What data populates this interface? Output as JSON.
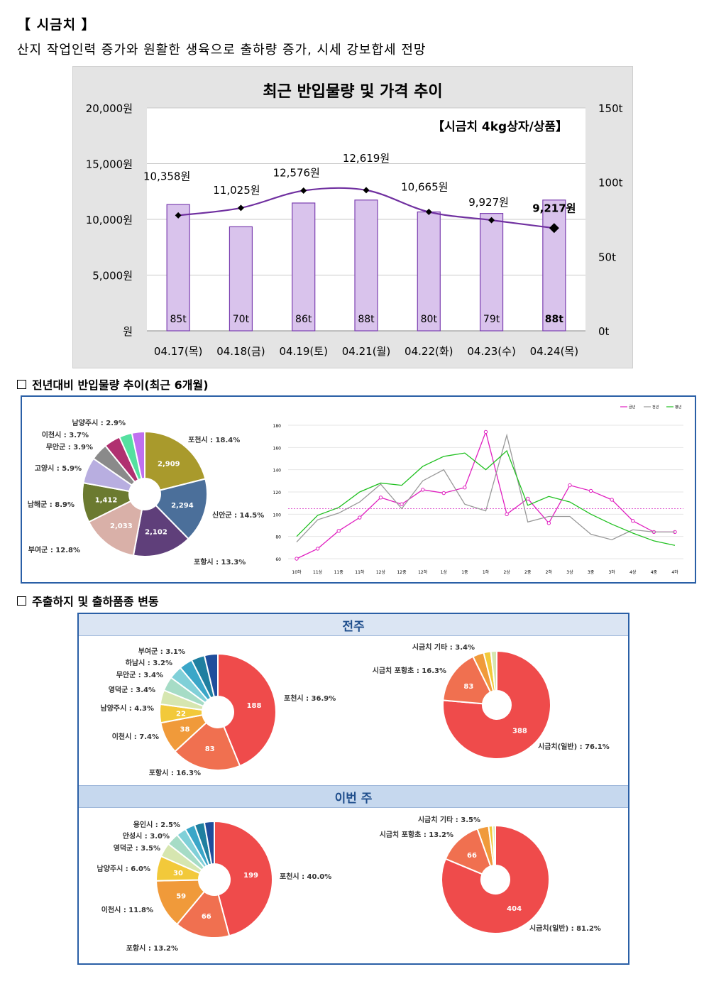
{
  "page": {
    "title": "【 시금치 】",
    "subtitle": "산지 작업인력 증가와 원활한 생육으로 출하량 증가, 시세 강보합세 전망",
    "section2_title": "전년대비 반입물량 추이(최근 6개월)",
    "section3_title": "주출하지 및 출하품종 변동"
  },
  "colors": {
    "bar_fill": "#d9c3ec",
    "bar_stroke": "#7b3fb0",
    "price_line": "#7030a0",
    "frame": "#2a5fa6",
    "band": "#c9daf0"
  },
  "chart_data": [
    {
      "type": "bar",
      "title": "최근 반입물량 및 가격 추이",
      "subtitle": "【시금치 4kg상자/상품】",
      "categories": [
        "04.17(목)",
        "04.18(금)",
        "04.19(토)",
        "04.21(월)",
        "04.22(화)",
        "04.23(수)",
        "04.24(목)"
      ],
      "series": [
        {
          "name": "반입량",
          "values": [
            85,
            70,
            86,
            88,
            80,
            79,
            88
          ],
          "labels": [
            "85t",
            "70t",
            "86t",
            "88t",
            "80t",
            "79t",
            "88t"
          ]
        },
        {
          "name": "가격",
          "type": "line",
          "values": [
            10358,
            11025,
            12576,
            12619,
            10665,
            9927,
            9217
          ],
          "labels": [
            "10,358원",
            "11,025원",
            "12,576원",
            "12,619원",
            "10,665원",
            "9,927원",
            "9,217원"
          ]
        }
      ],
      "y_left": {
        "ticks": [
          "20,000원",
          "15,000원",
          "10,000원",
          "5,000원",
          "원"
        ],
        "ylim": [
          0,
          20000
        ]
      },
      "y_right": {
        "ticks": [
          "150t",
          "100t",
          "50t",
          "0t"
        ],
        "ylim": [
          0,
          150
        ]
      }
    },
    {
      "type": "pie",
      "donut": true,
      "slices": [
        {
          "label": "포천시 : 18.4%",
          "value": 2909,
          "inner": "2,909",
          "color": "#a99a2c"
        },
        {
          "label": "신안군 : 14.5%",
          "value": 2294,
          "inner": "2,294",
          "color": "#4b6f9a"
        },
        {
          "label": "포항시 : 13.3%",
          "value": 2102,
          "inner": "2,102",
          "color": "#5f3f7a"
        },
        {
          "label": "부여군 : 12.8%",
          "value": 2033,
          "inner": "2,033",
          "color": "#d9b0a8"
        },
        {
          "label": "남해군 : 8.9%",
          "value": 1412,
          "inner": "1,412",
          "color": "#6b7a30"
        },
        {
          "label": "고양시 : 5.9%",
          "value": 933,
          "inner": "",
          "color": "#b8aee0"
        },
        {
          "label": "무안군 : 3.9%",
          "value": 617,
          "inner": "",
          "color": "#8a8a8a"
        },
        {
          "label": "이천시 : 3.7%",
          "value": 585,
          "inner": "",
          "color": "#b03070"
        },
        {
          "label": "남양주시 : 2.9%",
          "value": 459,
          "inner": "",
          "color": "#55e0a0"
        },
        {
          "label": "",
          "value": 459,
          "inner": "",
          "color": "#c070f0"
        }
      ]
    },
    {
      "type": "line",
      "legend": [
        "금년",
        "전년",
        "평년"
      ],
      "x": [
        "10하",
        "11상",
        "11중",
        "11하",
        "12상",
        "12중",
        "12하",
        "1상",
        "1중",
        "1하",
        "2상",
        "2중",
        "2하",
        "3상",
        "3중",
        "3하",
        "4상",
        "4중",
        "4하"
      ],
      "y_ticks": [
        "180",
        "160",
        "140",
        "120",
        "100",
        "80",
        "60"
      ],
      "ylim": [
        60,
        180
      ],
      "series": [
        {
          "name": "금년",
          "color": "#e020c0",
          "values": [
            60,
            69,
            85,
            97,
            115,
            109,
            122,
            119,
            124,
            174,
            100,
            114,
            92,
            126,
            121,
            113,
            94,
            84,
            84
          ]
        },
        {
          "name": "전년",
          "color": "#999999",
          "values": [
            75,
            95,
            101,
            111,
            127,
            105,
            130,
            140,
            109,
            103,
            171,
            93,
            98,
            98,
            82,
            77,
            86,
            84,
            84
          ]
        },
        {
          "name": "평년",
          "color": "#20c020",
          "values": [
            80,
            99,
            106,
            120,
            128,
            126,
            143,
            152,
            155,
            140,
            157,
            108,
            116,
            111,
            100,
            91,
            83,
            76,
            72
          ]
        }
      ],
      "reference": 105
    },
    {
      "type": "pie",
      "group": "전주",
      "donut": true,
      "slices": [
        {
          "label": "포천시 : 36.9%",
          "value": 188,
          "inner": "188",
          "color": "#ef4b4b"
        },
        {
          "label": "포항시 : 16.3%",
          "value": 83,
          "inner": "83",
          "color": "#f07050"
        },
        {
          "label": "이천시 : 7.4%",
          "value": 38,
          "inner": "38",
          "color": "#f09a3a"
        },
        {
          "label": "남양주시 : 4.3%",
          "value": 22,
          "inner": "22",
          "color": "#f2c93a"
        },
        {
          "label": "영덕군 : 3.4%",
          "value": 17,
          "inner": "",
          "color": "#d6e6b0"
        },
        {
          "label": "무안군 : 3.4%",
          "value": 17,
          "inner": "",
          "color": "#a6dcc6"
        },
        {
          "label": "하남시 : 3.2%",
          "value": 16,
          "inner": "",
          "color": "#80d0d8"
        },
        {
          "label": "부여군 : 3.1%",
          "value": 16,
          "inner": "",
          "color": "#3aa6c8"
        },
        {
          "label": "",
          "value": 16,
          "inner": "",
          "color": "#1f7fa0"
        },
        {
          "label": "",
          "value": 16,
          "inner": "",
          "color": "#1f4e9c"
        }
      ]
    },
    {
      "type": "pie",
      "group": "전주",
      "donut": true,
      "slices": [
        {
          "label": "시금치(일반) : 76.1%",
          "value": 388,
          "inner": "388",
          "color": "#ef4b4b"
        },
        {
          "label": "시금치 포항초 : 16.3%",
          "value": 83,
          "inner": "83",
          "color": "#f07050"
        },
        {
          "label": "시금치 기타 : 3.4%",
          "value": 17,
          "inner": "",
          "color": "#f09a3a"
        },
        {
          "label": "",
          "value": 11,
          "inner": "",
          "color": "#f2c93a"
        },
        {
          "label": "",
          "value": 9,
          "inner": "",
          "color": "#d6e6b0"
        }
      ]
    },
    {
      "type": "pie",
      "group": "이번 주",
      "donut": true,
      "slices": [
        {
          "label": "포천시 : 40.0%",
          "value": 199,
          "inner": "199",
          "color": "#ef4b4b"
        },
        {
          "label": "포항시 : 13.2%",
          "value": 66,
          "inner": "66",
          "color": "#f07050"
        },
        {
          "label": "이천시 : 11.8%",
          "value": 59,
          "inner": "59",
          "color": "#f09a3a"
        },
        {
          "label": "남양주시 : 6.0%",
          "value": 30,
          "inner": "30",
          "color": "#f2c93a"
        },
        {
          "label": "영덕군 : 3.5%",
          "value": 17,
          "inner": "",
          "color": "#d6e6b0"
        },
        {
          "label": "안성시 : 3.0%",
          "value": 15,
          "inner": "",
          "color": "#a6dcc6"
        },
        {
          "label": "용인시 : 2.5%",
          "value": 12,
          "inner": "",
          "color": "#80d0d8"
        },
        {
          "label": "",
          "value": 12,
          "inner": "",
          "color": "#3aa6c8"
        },
        {
          "label": "",
          "value": 12,
          "inner": "",
          "color": "#1f7fa0"
        },
        {
          "label": "",
          "value": 12,
          "inner": "",
          "color": "#1f4e9c"
        }
      ]
    },
    {
      "type": "pie",
      "group": "이번 주",
      "donut": true,
      "slices": [
        {
          "label": "시금치(일반) : 81.2%",
          "value": 404,
          "inner": "404",
          "color": "#ef4b4b"
        },
        {
          "label": "시금치 포항초 : 13.2%",
          "value": 66,
          "inner": "66",
          "color": "#f07050"
        },
        {
          "label": "시금치 기타 : 3.5%",
          "value": 17,
          "inner": "",
          "color": "#f09a3a"
        },
        {
          "label": "",
          "value": 6,
          "inner": "",
          "color": "#f2c93a"
        },
        {
          "label": "",
          "value": 4,
          "inner": "",
          "color": "#d6e6b0"
        }
      ]
    }
  ],
  "bands": {
    "prev": "전주",
    "this": "이번 주"
  }
}
